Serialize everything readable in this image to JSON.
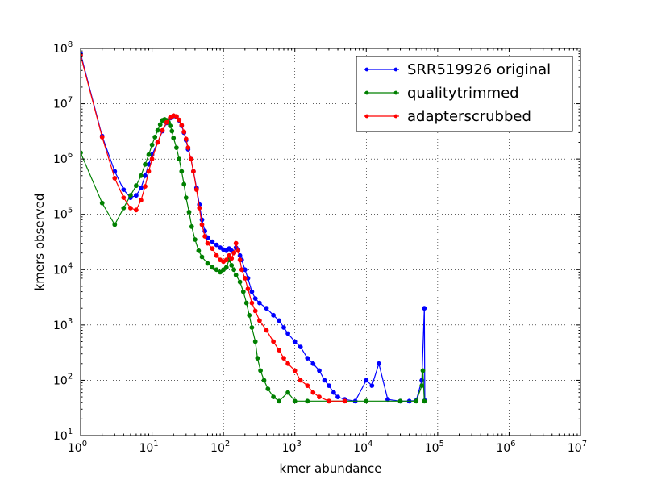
{
  "chart_data": {
    "type": "line",
    "x_scale": "log",
    "y_scale": "log",
    "xlabel": "kmer abundance",
    "ylabel": "kmers observed",
    "xlim": [
      1,
      10000000
    ],
    "ylim": [
      10,
      100000000
    ],
    "grid": true,
    "legend_position": "top-right",
    "x_ticks": [
      {
        "base": "10",
        "exp": "0"
      },
      {
        "base": "10",
        "exp": "1"
      },
      {
        "base": "10",
        "exp": "2"
      },
      {
        "base": "10",
        "exp": "3"
      },
      {
        "base": "10",
        "exp": "4"
      },
      {
        "base": "10",
        "exp": "5"
      },
      {
        "base": "10",
        "exp": "6"
      },
      {
        "base": "10",
        "exp": "7"
      }
    ],
    "y_ticks": [
      {
        "base": "10",
        "exp": "1"
      },
      {
        "base": "10",
        "exp": "2"
      },
      {
        "base": "10",
        "exp": "3"
      },
      {
        "base": "10",
        "exp": "4"
      },
      {
        "base": "10",
        "exp": "5"
      },
      {
        "base": "10",
        "exp": "6"
      },
      {
        "base": "10",
        "exp": "7"
      },
      {
        "base": "10",
        "exp": "8"
      }
    ],
    "series": [
      {
        "name": "SRR519926 original",
        "color": "#0000ff",
        "points": [
          [
            1,
            80000000
          ],
          [
            2,
            2600000
          ],
          [
            3,
            600000
          ],
          [
            4,
            280000
          ],
          [
            5,
            200000
          ],
          [
            6,
            220000
          ],
          [
            7,
            300000
          ],
          [
            8,
            500000
          ],
          [
            9,
            800000
          ],
          [
            10,
            1200000
          ],
          [
            12,
            2000000
          ],
          [
            14,
            3200000
          ],
          [
            16,
            4500000
          ],
          [
            18,
            5500000
          ],
          [
            20,
            6000000
          ],
          [
            22,
            5800000
          ],
          [
            24,
            5000000
          ],
          [
            26,
            4000000
          ],
          [
            28,
            3000000
          ],
          [
            30,
            2200000
          ],
          [
            32,
            1500000
          ],
          [
            35,
            1000000
          ],
          [
            38,
            600000
          ],
          [
            42,
            300000
          ],
          [
            46,
            150000
          ],
          [
            50,
            80000
          ],
          [
            55,
            50000
          ],
          [
            60,
            38000
          ],
          [
            70,
            32000
          ],
          [
            80,
            28000
          ],
          [
            90,
            25000
          ],
          [
            100,
            23000
          ],
          [
            110,
            22000
          ],
          [
            120,
            24000
          ],
          [
            130,
            22000
          ],
          [
            140,
            20000
          ],
          [
            150,
            25000
          ],
          [
            160,
            23000
          ],
          [
            170,
            18000
          ],
          [
            180,
            15000
          ],
          [
            200,
            10000
          ],
          [
            220,
            7000
          ],
          [
            250,
            4000
          ],
          [
            280,
            3000
          ],
          [
            320,
            2500
          ],
          [
            400,
            2000
          ],
          [
            500,
            1500
          ],
          [
            600,
            1200
          ],
          [
            700,
            900
          ],
          [
            800,
            700
          ],
          [
            1000,
            500
          ],
          [
            1200,
            400
          ],
          [
            1500,
            250
          ],
          [
            1800,
            200
          ],
          [
            2200,
            150
          ],
          [
            2600,
            100
          ],
          [
            3000,
            80
          ],
          [
            3500,
            60
          ],
          [
            4000,
            50
          ],
          [
            5000,
            45
          ],
          [
            7000,
            42
          ],
          [
            10000,
            100
          ],
          [
            12000,
            80
          ],
          [
            15000,
            200
          ],
          [
            20000,
            45
          ],
          [
            30000,
            42
          ],
          [
            40000,
            42
          ],
          [
            50000,
            43
          ],
          [
            60000,
            100
          ],
          [
            65000,
            2000
          ],
          [
            66000,
            43
          ]
        ]
      },
      {
        "name": "qualitytrimmed",
        "color": "#008000",
        "points": [
          [
            1,
            1300000
          ],
          [
            2,
            160000
          ],
          [
            3,
            65000
          ],
          [
            4,
            130000
          ],
          [
            5,
            220000
          ],
          [
            6,
            330000
          ],
          [
            7,
            500000
          ],
          [
            8,
            800000
          ],
          [
            9,
            1200000
          ],
          [
            10,
            1800000
          ],
          [
            11,
            2500000
          ],
          [
            12,
            3300000
          ],
          [
            13,
            4200000
          ],
          [
            14,
            5000000
          ],
          [
            15,
            5200000
          ],
          [
            16,
            5000000
          ],
          [
            17,
            4600000
          ],
          [
            18,
            4000000
          ],
          [
            19,
            3200000
          ],
          [
            20,
            2400000
          ],
          [
            22,
            1600000
          ],
          [
            24,
            1000000
          ],
          [
            26,
            600000
          ],
          [
            28,
            350000
          ],
          [
            30,
            200000
          ],
          [
            33,
            110000
          ],
          [
            36,
            60000
          ],
          [
            40,
            35000
          ],
          [
            45,
            22000
          ],
          [
            50,
            17000
          ],
          [
            60,
            13000
          ],
          [
            70,
            11000
          ],
          [
            80,
            10000
          ],
          [
            90,
            9000
          ],
          [
            100,
            10000
          ],
          [
            110,
            11000
          ],
          [
            120,
            15000
          ],
          [
            130,
            12000
          ],
          [
            140,
            10000
          ],
          [
            150,
            8000
          ],
          [
            170,
            6000
          ],
          [
            190,
            4000
          ],
          [
            210,
            2500
          ],
          [
            230,
            1500
          ],
          [
            250,
            900
          ],
          [
            280,
            500
          ],
          [
            300,
            250
          ],
          [
            330,
            150
          ],
          [
            370,
            100
          ],
          [
            420,
            70
          ],
          [
            500,
            50
          ],
          [
            600,
            42
          ],
          [
            800,
            60
          ],
          [
            1000,
            42
          ],
          [
            1500,
            42
          ],
          [
            3000,
            42
          ],
          [
            10000,
            42
          ],
          [
            30000,
            42
          ],
          [
            50000,
            42
          ],
          [
            60000,
            80
          ],
          [
            62000,
            150
          ],
          [
            65000,
            42
          ]
        ]
      },
      {
        "name": "adapterscrubbed",
        "color": "#ff0000",
        "points": [
          [
            1,
            75000000
          ],
          [
            2,
            2500000
          ],
          [
            3,
            450000
          ],
          [
            4,
            200000
          ],
          [
            5,
            130000
          ],
          [
            6,
            120000
          ],
          [
            7,
            180000
          ],
          [
            8,
            320000
          ],
          [
            9,
            600000
          ],
          [
            10,
            1000000
          ],
          [
            12,
            2000000
          ],
          [
            14,
            3300000
          ],
          [
            16,
            4600000
          ],
          [
            18,
            5600000
          ],
          [
            20,
            6100000
          ],
          [
            22,
            5900000
          ],
          [
            24,
            5100000
          ],
          [
            26,
            4100000
          ],
          [
            28,
            3100000
          ],
          [
            30,
            2300000
          ],
          [
            32,
            1600000
          ],
          [
            35,
            1000000
          ],
          [
            38,
            600000
          ],
          [
            42,
            280000
          ],
          [
            46,
            130000
          ],
          [
            50,
            65000
          ],
          [
            55,
            40000
          ],
          [
            60,
            30000
          ],
          [
            70,
            24000
          ],
          [
            80,
            18000
          ],
          [
            90,
            15000
          ],
          [
            100,
            14000
          ],
          [
            110,
            15000
          ],
          [
            120,
            18000
          ],
          [
            130,
            16000
          ],
          [
            140,
            20000
          ],
          [
            150,
            30000
          ],
          [
            160,
            22000
          ],
          [
            170,
            15000
          ],
          [
            180,
            10000
          ],
          [
            200,
            7000
          ],
          [
            220,
            4500
          ],
          [
            250,
            2500
          ],
          [
            280,
            1800
          ],
          [
            320,
            1200
          ],
          [
            400,
            800
          ],
          [
            500,
            500
          ],
          [
            600,
            350
          ],
          [
            700,
            250
          ],
          [
            800,
            200
          ],
          [
            1000,
            150
          ],
          [
            1200,
            100
          ],
          [
            1500,
            80
          ],
          [
            1800,
            60
          ],
          [
            2200,
            50
          ],
          [
            3000,
            42
          ],
          [
            5000,
            42
          ]
        ]
      }
    ]
  }
}
